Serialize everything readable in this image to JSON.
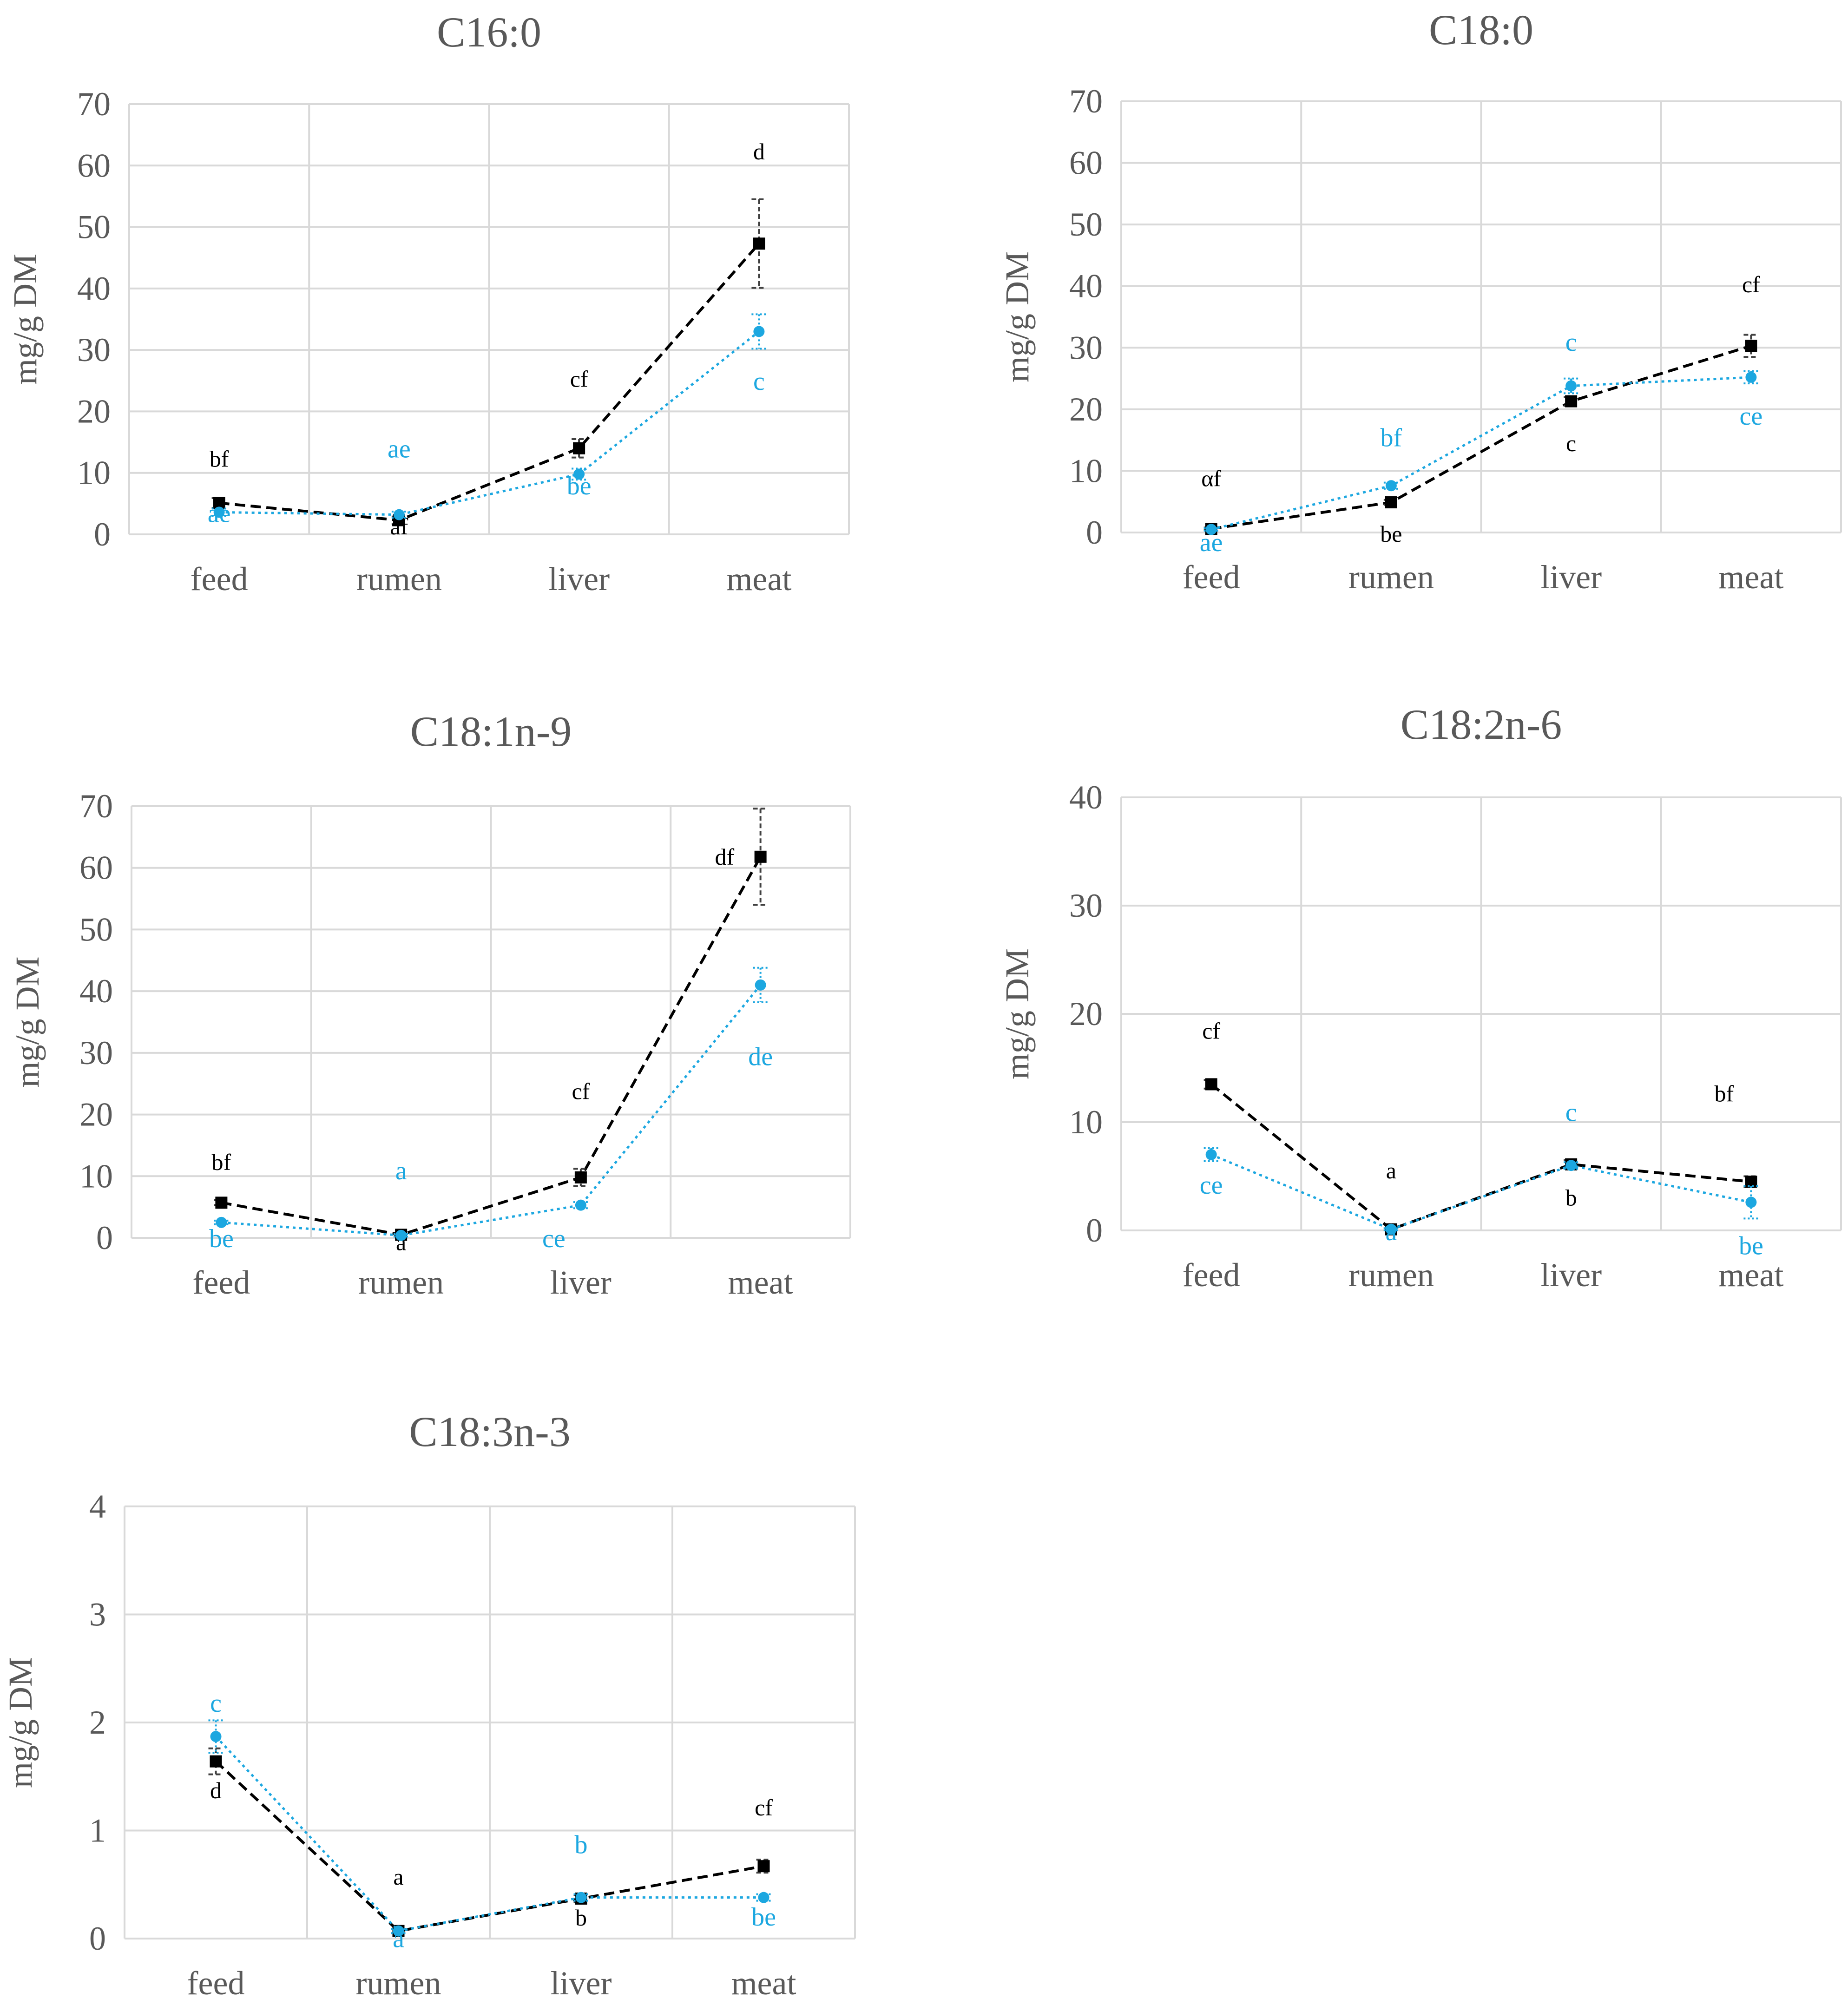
{
  "figure": {
    "series_colors": {
      "black": "#000000",
      "blue": "#1ca7e0"
    },
    "grid_color": "#d9d9d9",
    "text_color": "#595959"
  },
  "chart_data": [
    {
      "type": "line",
      "title": "C16:0",
      "ylabel": "mg/g DM",
      "categories": [
        "feed",
        "rumen",
        "liver",
        "meat"
      ],
      "ylim": [
        0,
        70
      ],
      "yticks": [
        0,
        10,
        20,
        30,
        40,
        50,
        60,
        70
      ],
      "series": [
        {
          "name": "black",
          "color": "#000000",
          "values": [
            5.1,
            2.3,
            14.0,
            47.3
          ],
          "errors": [
            0.8,
            0.6,
            1.5,
            7.2
          ],
          "labels": [
            {
              "text": "bf",
              "x": 0,
              "y": 11
            },
            {
              "text": "af",
              "x": 1,
              "y": 0
            },
            {
              "text": "cf",
              "x": 2,
              "y": 24
            },
            {
              "text": "d",
              "x": 3,
              "y": 61
            }
          ]
        },
        {
          "name": "blue",
          "color": "#1ca7e0",
          "values": [
            3.6,
            3.2,
            9.8,
            33.0
          ],
          "errors": [
            0.6,
            0.5,
            0.9,
            2.8
          ],
          "labels": [
            {
              "text": "ae",
              "x": 0,
              "y": 2
            },
            {
              "text": "ae",
              "x": 1,
              "y": 12.5
            },
            {
              "text": "be",
              "x": 2,
              "y": 6.5
            },
            {
              "text": "c",
              "x": 3,
              "y": 23.5
            }
          ]
        }
      ]
    },
    {
      "type": "line",
      "title": "C18:0",
      "ylabel": "mg/g DM",
      "categories": [
        "feed",
        "rumen",
        "liver",
        "meat"
      ],
      "ylim": [
        0,
        70
      ],
      "yticks": [
        0,
        10,
        20,
        30,
        40,
        50,
        60,
        70
      ],
      "series": [
        {
          "name": "black",
          "color": "#000000",
          "values": [
            0.6,
            4.9,
            21.3,
            30.3
          ],
          "errors": [
            0.2,
            0.4,
            0.7,
            1.8
          ],
          "labels": [
            {
              "text": "αf",
              "x": 0,
              "y": 7.5
            },
            {
              "text": "be",
              "x": 1,
              "y": -1.5
            },
            {
              "text": "c",
              "x": 2,
              "y": 13.2
            },
            {
              "text": "cf",
              "x": 3,
              "y": 39
            }
          ]
        },
        {
          "name": "blue",
          "color": "#1ca7e0",
          "values": [
            0.5,
            7.6,
            23.8,
            25.2
          ],
          "errors": [
            0.2,
            0.5,
            1.2,
            1.0
          ],
          "labels": [
            {
              "text": "ae",
              "x": 0,
              "y": -3
            },
            {
              "text": "bf",
              "x": 1,
              "y": 14
            },
            {
              "text": "c",
              "x": 2,
              "y": 29.5
            },
            {
              "text": "ce",
              "x": 3,
              "y": 17.5
            }
          ]
        }
      ]
    },
    {
      "type": "line",
      "title": "C18:1n-9",
      "ylabel": "mg/g DM",
      "categories": [
        "feed",
        "rumen",
        "liver",
        "meat"
      ],
      "ylim": [
        0,
        70
      ],
      "yticks": [
        0,
        10,
        20,
        30,
        40,
        50,
        60,
        70
      ],
      "series": [
        {
          "name": "black",
          "color": "#000000",
          "values": [
            5.7,
            0.5,
            9.8,
            61.8
          ],
          "errors": [
            0.4,
            0.2,
            1.4,
            7.8
          ],
          "labels": [
            {
              "text": "bf",
              "x": 0,
              "y": 11
            },
            {
              "text": "a",
              "x": 1,
              "y": -2
            },
            {
              "text": "cf",
              "x": 2,
              "y": 22.5
            },
            {
              "text": "df",
              "x": 2.8,
              "y": 60.5
            }
          ]
        },
        {
          "name": "blue",
          "color": "#1ca7e0",
          "values": [
            2.5,
            0.4,
            5.3,
            41.0
          ],
          "errors": [
            0.3,
            0.2,
            0.5,
            2.8
          ],
          "labels": [
            {
              "text": "be",
              "x": 0,
              "y": -1.5
            },
            {
              "text": "a",
              "x": 1,
              "y": 9.5
            },
            {
              "text": "ce",
              "x": 1.85,
              "y": -1.5
            },
            {
              "text": "de",
              "x": 3,
              "y": 28
            }
          ]
        }
      ]
    },
    {
      "type": "line",
      "title": "C18:2n-6",
      "ylabel": "mg/g DM",
      "categories": [
        "feed",
        "rumen",
        "liver",
        "meat"
      ],
      "ylim": [
        0,
        40
      ],
      "yticks": [
        0,
        10,
        20,
        30,
        40
      ],
      "series": [
        {
          "name": "black",
          "color": "#000000",
          "values": [
            13.5,
            0.1,
            6.1,
            4.5
          ],
          "errors": [
            0.4,
            0.1,
            0.4,
            0.5
          ],
          "labels": [
            {
              "text": "cf",
              "x": 0,
              "y": 17.7
            },
            {
              "text": "a",
              "x": 1,
              "y": 4.8
            },
            {
              "text": "b",
              "x": 2,
              "y": 2.3
            },
            {
              "text": "bf",
              "x": 2.85,
              "y": 11.9
            }
          ]
        },
        {
          "name": "blue",
          "color": "#1ca7e0",
          "values": [
            7.0,
            0.1,
            6.0,
            2.6
          ],
          "errors": [
            0.6,
            0.1,
            0.3,
            1.5
          ],
          "labels": [
            {
              "text": "ce",
              "x": 0,
              "y": 3.4
            },
            {
              "text": "a",
              "x": 1,
              "y": -0.9
            },
            {
              "text": "c",
              "x": 2,
              "y": 10.1
            },
            {
              "text": "be",
              "x": 3,
              "y": -2.2
            }
          ]
        }
      ]
    },
    {
      "type": "line",
      "title": "C18:3n-3",
      "ylabel": "mg/g DM",
      "categories": [
        "feed",
        "rumen",
        "liver",
        "meat"
      ],
      "ylim": [
        0,
        4
      ],
      "yticks": [
        0,
        1,
        2,
        3,
        4
      ],
      "series": [
        {
          "name": "black",
          "color": "#000000",
          "values": [
            1.64,
            0.07,
            0.37,
            0.67
          ],
          "errors": [
            0.12,
            0.02,
            0.03,
            0.06
          ],
          "labels": [
            {
              "text": "d",
              "x": 0,
              "y": 1.3
            },
            {
              "text": "a",
              "x": 1,
              "y": 0.5
            },
            {
              "text": "b",
              "x": 2,
              "y": 0.12
            },
            {
              "text": "cf",
              "x": 3,
              "y": 1.14
            }
          ]
        },
        {
          "name": "blue",
          "color": "#1ca7e0",
          "values": [
            1.87,
            0.07,
            0.38,
            0.38
          ],
          "errors": [
            0.15,
            0.02,
            0.03,
            0.03
          ],
          "labels": [
            {
              "text": "c",
              "x": 0,
              "y": 2.1
            },
            {
              "text": "a",
              "x": 1,
              "y": -0.08
            },
            {
              "text": "b",
              "x": 2,
              "y": 0.79
            },
            {
              "text": "be",
              "x": 3,
              "y": 0.12
            }
          ]
        }
      ]
    }
  ]
}
